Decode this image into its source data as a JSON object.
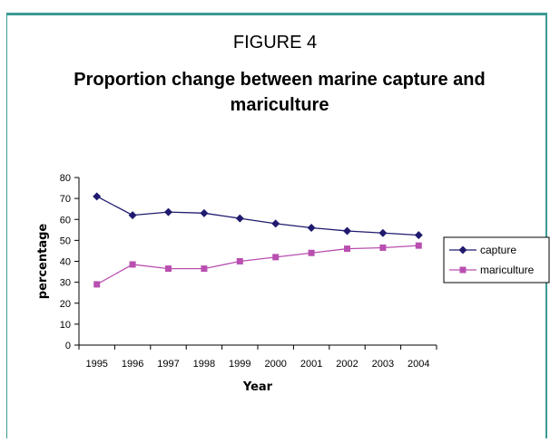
{
  "figure": {
    "label": "FIGURE 4",
    "title": "Proportion change between marine capture and mariculture"
  },
  "chart_data": {
    "type": "line",
    "x": [
      "1995",
      "1996",
      "1997",
      "1998",
      "1999",
      "2000",
      "2001",
      "2002",
      "2003",
      "2004"
    ],
    "series": [
      {
        "name": "capture",
        "color": "#1f1a6e",
        "marker": "diamond",
        "values": [
          71,
          62,
          63.5,
          63,
          60.5,
          58,
          56,
          54.5,
          53.5,
          52.5
        ]
      },
      {
        "name": "mariculture",
        "color": "#b94fb0",
        "marker": "square",
        "values": [
          29,
          38.5,
          36.5,
          36.5,
          40,
          42,
          44,
          46,
          46.5,
          47.5
        ]
      }
    ],
    "xlabel": "Year",
    "ylabel": "percentage",
    "ylim": [
      0,
      80
    ],
    "yticks": [
      0,
      10,
      20,
      30,
      40,
      50,
      60,
      70,
      80
    ],
    "grid": false,
    "legend": "right"
  }
}
